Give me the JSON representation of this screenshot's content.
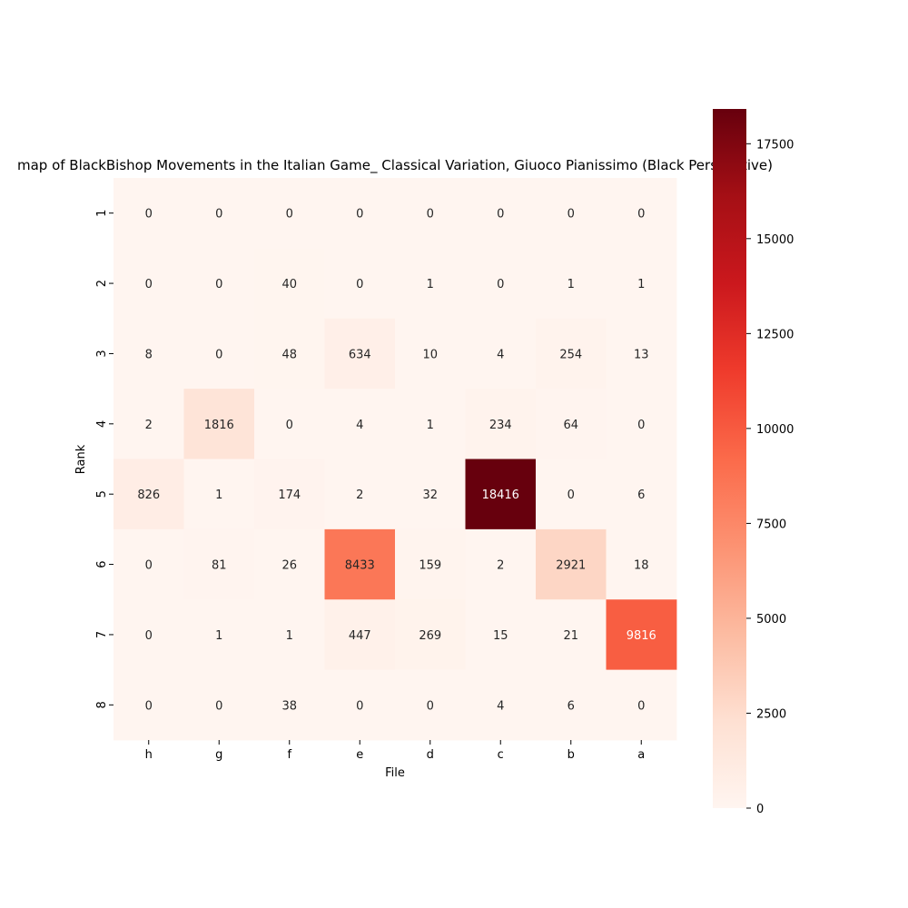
{
  "chart_data": {
    "type": "heatmap",
    "title": "map of BlackBishop Movements in the Italian Game_ Classical Variation, Giuoco Pianissimo (Black Perspective)",
    "xlabel": "File",
    "ylabel": "Rank",
    "x_categories": [
      "h",
      "g",
      "f",
      "e",
      "d",
      "c",
      "b",
      "a"
    ],
    "y_categories": [
      "1",
      "2",
      "3",
      "4",
      "5",
      "6",
      "7",
      "8"
    ],
    "values": [
      [
        0,
        0,
        0,
        0,
        0,
        0,
        0,
        0
      ],
      [
        0,
        0,
        40,
        0,
        1,
        0,
        1,
        1
      ],
      [
        8,
        0,
        48,
        634,
        10,
        4,
        254,
        13
      ],
      [
        2,
        1816,
        0,
        4,
        1,
        234,
        64,
        0
      ],
      [
        826,
        1,
        174,
        2,
        32,
        18416,
        0,
        6
      ],
      [
        0,
        81,
        26,
        8433,
        159,
        2,
        2921,
        18
      ],
      [
        0,
        1,
        1,
        447,
        269,
        15,
        21,
        9816
      ],
      [
        0,
        0,
        38,
        0,
        0,
        4,
        6,
        0
      ]
    ],
    "colormap": "Reds",
    "colorbar": {
      "range": [
        0,
        18416
      ],
      "ticks": [
        0,
        2500,
        5000,
        7500,
        10000,
        12500,
        15000,
        17500
      ]
    },
    "annotations": true
  }
}
